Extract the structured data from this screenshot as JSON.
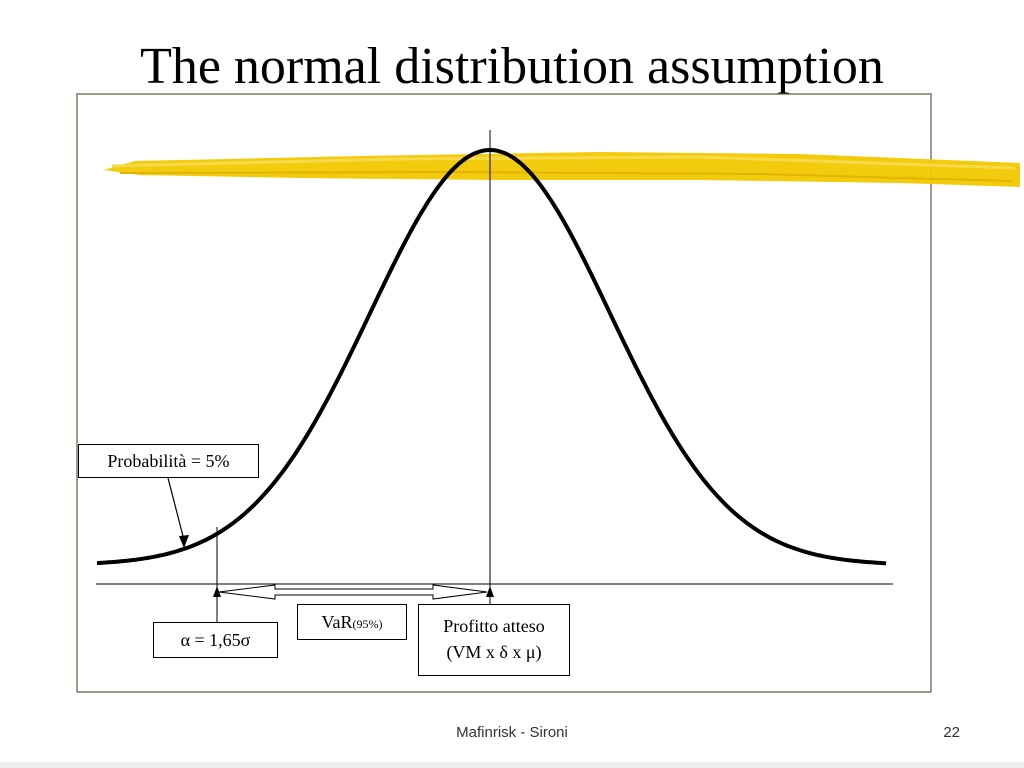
{
  "slide": {
    "title": "The normal distribution assumption",
    "footer": "Mafinrisk - Sironi",
    "page_number": "22"
  },
  "labels": {
    "probability": "Probabilità = 5%",
    "alpha": "α = 1,65σ",
    "var_main": "VaR",
    "var_sub": "(95%)",
    "profit_line1": "Profitto atteso",
    "profit_line2": "(VM x δ x μ)"
  },
  "colors": {
    "highlight": "#f2c800",
    "frame": "#5a5a3c",
    "curve": "#000000"
  }
}
